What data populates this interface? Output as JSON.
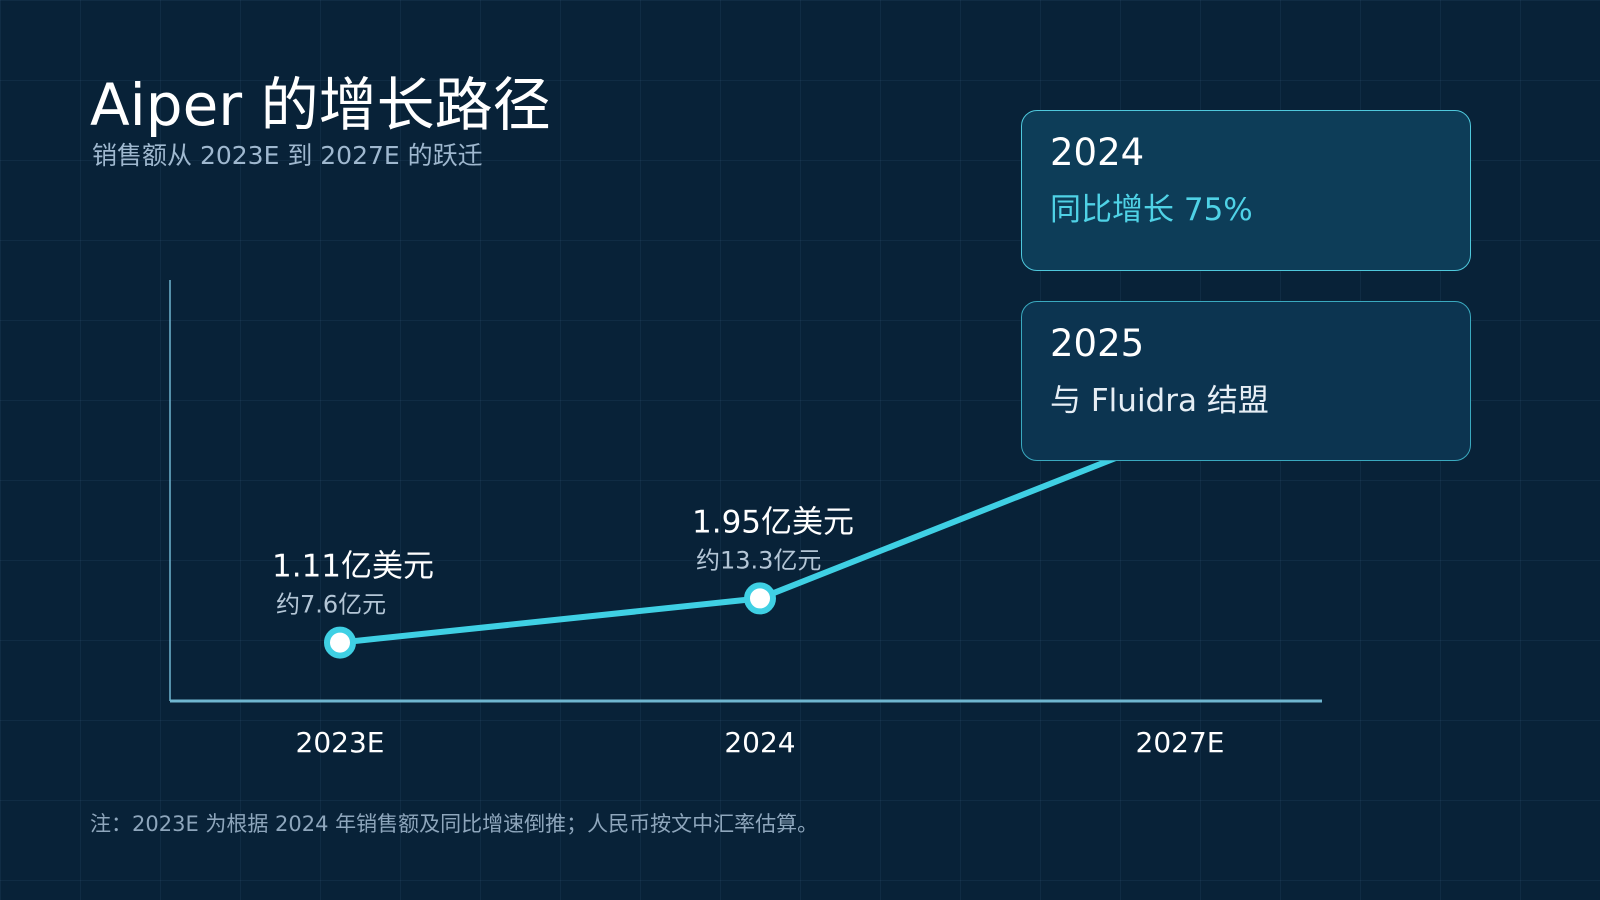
{
  "title": "Aiper 的增长路径",
  "subtitle": "销售额从 2023E 到 2027E 的跃迁",
  "colors": {
    "background": "#082238",
    "line": "#3fd0e4",
    "axis": "#6fb6d0",
    "accent": "#4fd2e6"
  },
  "chart_data": {
    "type": "line",
    "categories": [
      "2023E",
      "2024",
      "2027E"
    ],
    "series": [
      {
        "values": [
          1.11,
          1.95,
          5.1
        ],
        "labels": [
          "1.11亿美元",
          "1.95亿美元",
          ""
        ],
        "sublabels": [
          "约7.6亿元",
          "约13.3亿元",
          ""
        ]
      }
    ],
    "ylim": [
      0,
      8
    ],
    "grid": true,
    "legend": "none"
  },
  "callouts": [
    {
      "year": "2024",
      "text": "同比增长 75%"
    },
    {
      "year": "2025",
      "text": "与 Fluidra 结盟"
    }
  ],
  "footnote": "注：2023E 为根据 2024 年销售额及同比增速倒推；人民币按文中汇率估算。"
}
